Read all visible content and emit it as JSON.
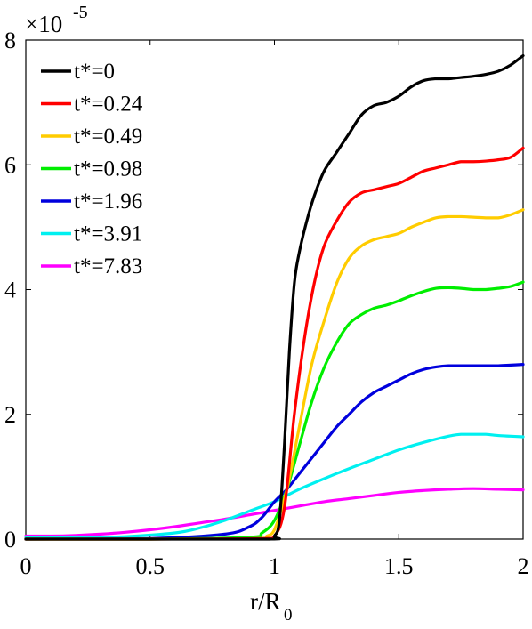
{
  "chart_data": {
    "type": "line",
    "title": "",
    "xlabel": "r/R",
    "xlabel_subscript": "0",
    "ylabel": "",
    "xlim": [
      0,
      2
    ],
    "ylim": [
      0,
      8
    ],
    "y_multiplier": {
      "base": "×10",
      "exponent": "-5"
    },
    "xticks": [
      0,
      0.5,
      1,
      1.5,
      2
    ],
    "xtick_labels": [
      "0",
      "0.5",
      "1",
      "1.5",
      "2"
    ],
    "yticks": [
      0,
      2,
      4,
      6,
      8
    ],
    "ytick_labels": [
      "0",
      "2",
      "4",
      "6",
      "8"
    ],
    "grid": false,
    "legend_position": "top-left",
    "series": [
      {
        "name": "t*=0",
        "color": "#000000",
        "x": [
          0,
          0.5,
          0.98,
          1.0,
          1.02,
          1.04,
          1.06,
          1.08,
          1.1,
          1.13,
          1.16,
          1.2,
          1.25,
          1.3,
          1.35,
          1.4,
          1.45,
          1.5,
          1.55,
          1.6,
          1.65,
          1.7,
          1.75,
          1.8,
          1.85,
          1.9,
          1.95,
          2.0
        ],
        "y": [
          0,
          0,
          0,
          0.05,
          0.3,
          1.5,
          3.0,
          4.1,
          4.6,
          5.1,
          5.5,
          5.9,
          6.2,
          6.5,
          6.8,
          6.95,
          7.0,
          7.1,
          7.25,
          7.35,
          7.38,
          7.38,
          7.4,
          7.42,
          7.45,
          7.5,
          7.6,
          7.75
        ]
      },
      {
        "name": "t*=0.24",
        "color": "#ff0000",
        "x": [
          0,
          0.5,
          0.95,
          1.0,
          1.04,
          1.08,
          1.12,
          1.16,
          1.2,
          1.25,
          1.3,
          1.35,
          1.4,
          1.45,
          1.5,
          1.55,
          1.6,
          1.65,
          1.7,
          1.75,
          1.8,
          1.85,
          1.9,
          1.95,
          2.0
        ],
        "y": [
          0,
          0,
          0.01,
          0.05,
          0.5,
          2.0,
          3.2,
          4.1,
          4.7,
          5.1,
          5.4,
          5.55,
          5.6,
          5.65,
          5.7,
          5.8,
          5.9,
          5.95,
          6.0,
          6.05,
          6.05,
          6.06,
          6.08,
          6.12,
          6.27
        ]
      },
      {
        "name": "t*=0.49",
        "color": "#ffcc00",
        "x": [
          0,
          0.5,
          0.93,
          0.97,
          1.0,
          1.05,
          1.1,
          1.15,
          1.2,
          1.25,
          1.3,
          1.35,
          1.4,
          1.45,
          1.5,
          1.55,
          1.6,
          1.65,
          1.7,
          1.75,
          1.8,
          1.85,
          1.9,
          1.95,
          2.0
        ],
        "y": [
          0,
          0,
          0.01,
          0.05,
          0.15,
          0.8,
          1.8,
          2.8,
          3.5,
          4.1,
          4.5,
          4.7,
          4.8,
          4.85,
          4.9,
          5.0,
          5.08,
          5.15,
          5.17,
          5.17,
          5.16,
          5.15,
          5.15,
          5.2,
          5.28
        ]
      },
      {
        "name": "t*=0.98",
        "color": "#00ee00",
        "x": [
          0,
          0.5,
          0.9,
          0.95,
          1.0,
          1.05,
          1.1,
          1.15,
          1.2,
          1.25,
          1.3,
          1.35,
          1.4,
          1.45,
          1.5,
          1.55,
          1.6,
          1.65,
          1.7,
          1.75,
          1.8,
          1.85,
          1.9,
          1.95,
          2.0
        ],
        "y": [
          0,
          0,
          0.03,
          0.1,
          0.3,
          0.8,
          1.5,
          2.2,
          2.75,
          3.15,
          3.45,
          3.6,
          3.7,
          3.75,
          3.82,
          3.9,
          3.97,
          4.02,
          4.03,
          4.02,
          4.0,
          4.0,
          4.02,
          4.05,
          4.12
        ]
      },
      {
        "name": "t*=1.96",
        "color": "#0000dd",
        "x": [
          0,
          0.5,
          0.8,
          0.9,
          0.95,
          1.0,
          1.05,
          1.1,
          1.15,
          1.2,
          1.25,
          1.3,
          1.35,
          1.4,
          1.45,
          1.5,
          1.55,
          1.6,
          1.65,
          1.7,
          1.75,
          1.8,
          1.85,
          1.9,
          1.95,
          2.0
        ],
        "y": [
          0,
          0.01,
          0.08,
          0.2,
          0.35,
          0.6,
          0.8,
          1.05,
          1.3,
          1.55,
          1.8,
          2.0,
          2.2,
          2.35,
          2.45,
          2.55,
          2.65,
          2.72,
          2.76,
          2.78,
          2.78,
          2.78,
          2.78,
          2.78,
          2.79,
          2.8
        ]
      },
      {
        "name": "t*=3.91",
        "color": "#00f0f0",
        "x": [
          0,
          0.2,
          0.4,
          0.6,
          0.7,
          0.8,
          0.9,
          1.0,
          1.05,
          1.1,
          1.2,
          1.3,
          1.4,
          1.5,
          1.6,
          1.7,
          1.75,
          1.8,
          1.85,
          1.9,
          1.95,
          2.0
        ],
        "y": [
          0.02,
          0.02,
          0.04,
          0.1,
          0.18,
          0.3,
          0.45,
          0.6,
          0.7,
          0.8,
          0.97,
          1.13,
          1.28,
          1.43,
          1.55,
          1.65,
          1.68,
          1.68,
          1.68,
          1.66,
          1.65,
          1.64
        ]
      },
      {
        "name": "t*=7.83",
        "color": "#ff00ff",
        "x": [
          0,
          0.1,
          0.2,
          0.3,
          0.4,
          0.5,
          0.6,
          0.7,
          0.8,
          0.9,
          1.0,
          1.1,
          1.2,
          1.3,
          1.4,
          1.5,
          1.6,
          1.7,
          1.8,
          1.9,
          2.0
        ],
        "y": [
          0.05,
          0.05,
          0.06,
          0.08,
          0.11,
          0.15,
          0.2,
          0.26,
          0.32,
          0.39,
          0.46,
          0.53,
          0.6,
          0.65,
          0.7,
          0.75,
          0.78,
          0.8,
          0.81,
          0.8,
          0.79
        ]
      }
    ]
  }
}
